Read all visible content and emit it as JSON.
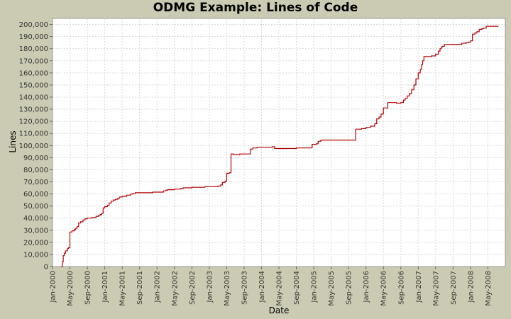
{
  "chart_data": {
    "type": "line",
    "title": "ODMG Example: Lines of Code",
    "xlabel": "Date",
    "ylabel": "Lines",
    "xlim": [
      "2000-01",
      "2008-09"
    ],
    "ylim": [
      0,
      205000
    ],
    "grid": true,
    "legend": "none",
    "colors": {
      "series": "#b40000",
      "plot_bg": "#ffffff",
      "page_bg": "#cbcbb4",
      "grid": "#d8d8d8"
    },
    "x_tick_labels": [
      "Jan-2000",
      "May-2000",
      "Sep-2000",
      "Jan-2001",
      "May-2001",
      "Sep-2001",
      "Jan-2002",
      "May-2002",
      "Sep-2002",
      "Jan-2003",
      "May-2003",
      "Sep-2003",
      "Jan-2004",
      "May-2004",
      "Sep-2004",
      "Jan-2005",
      "May-2005",
      "Sep-2005",
      "Jan-2006",
      "May-2006",
      "Sep-2006",
      "Jan-2007",
      "May-2007",
      "Sep-2007",
      "Jan-2008",
      "May-2008"
    ],
    "y_tick_labels": [
      "0",
      "10,000",
      "20,000",
      "30,000",
      "40,000",
      "50,000",
      "60,000",
      "70,000",
      "80,000",
      "90,000",
      "100,000",
      "110,000",
      "120,000",
      "130,000",
      "140,000",
      "150,000",
      "160,000",
      "170,000",
      "180,000",
      "190,000",
      "200,000"
    ],
    "series": [
      {
        "x": [
          "2000-03-01",
          "2000-03-08",
          "2000-03-15",
          "2000-03-22",
          "2000-04-01",
          "2000-04-15",
          "2000-04-22",
          "2000-05-01",
          "2000-05-15",
          "2000-06-01",
          "2000-06-10",
          "2000-06-20",
          "2000-07-01",
          "2000-07-15",
          "2000-08-01",
          "2000-08-15",
          "2000-09-01",
          "2000-10-01",
          "2000-11-01",
          "2000-11-20",
          "2000-12-01",
          "2000-12-10",
          "2000-12-20",
          "2001-01-01",
          "2001-01-20",
          "2001-02-01",
          "2001-02-15",
          "2001-03-01",
          "2001-03-15",
          "2001-04-01",
          "2001-04-15",
          "2001-05-01",
          "2001-06-01",
          "2001-07-01",
          "2001-07-15",
          "2001-08-01",
          "2001-10-01",
          "2001-12-01",
          "2002-01-01",
          "2002-02-15",
          "2002-03-01",
          "2002-03-15",
          "2002-05-01",
          "2002-06-15",
          "2002-07-01",
          "2002-09-01",
          "2002-11-01",
          "2002-12-01",
          "2003-01-01",
          "2003-03-01",
          "2003-03-20",
          "2003-04-01",
          "2003-04-20",
          "2003-05-01",
          "2003-05-20",
          "2003-06-01",
          "2003-06-20",
          "2003-07-01",
          "2003-08-01",
          "2003-09-01",
          "2003-10-15",
          "2003-11-01",
          "2003-11-15",
          "2003-12-01",
          "2004-03-15",
          "2004-04-01",
          "2004-08-01",
          "2004-09-01",
          "2004-10-15",
          "2004-11-01",
          "2004-12-01",
          "2004-12-20",
          "2005-01-20",
          "2005-02-01",
          "2005-02-20",
          "2005-03-01",
          "2005-06-01",
          "2005-09-01",
          "2005-10-01",
          "2005-10-20",
          "2005-12-01",
          "2006-01-01",
          "2006-02-01",
          "2006-03-01",
          "2006-03-15",
          "2006-04-01",
          "2006-04-15",
          "2006-05-01",
          "2006-06-01",
          "2006-07-01",
          "2006-08-01",
          "2006-09-01",
          "2006-09-20",
          "2006-10-01",
          "2006-10-15",
          "2006-11-01",
          "2006-11-15",
          "2006-12-01",
          "2006-12-15",
          "2007-01-01",
          "2007-01-15",
          "2007-01-25",
          "2007-02-01",
          "2007-02-10",
          "2007-02-20",
          "2007-03-01",
          "2007-04-01",
          "2007-05-01",
          "2007-05-20",
          "2007-06-01",
          "2007-06-10",
          "2007-06-20",
          "2007-07-01",
          "2007-07-15",
          "2007-08-01",
          "2007-09-01",
          "2007-10-01",
          "2007-11-01",
          "2007-12-01",
          "2007-12-20",
          "2008-01-01",
          "2008-01-15",
          "2008-02-01",
          "2008-02-15",
          "2008-03-01",
          "2008-03-20",
          "2008-04-01",
          "2008-04-20",
          "2008-05-01",
          "2008-05-15",
          "2008-07-15"
        ],
        "y": [
          0,
          4000,
          9000,
          11000,
          13000,
          15000,
          15500,
          28500,
          29500,
          30500,
          31500,
          33000,
          36000,
          37000,
          38500,
          39500,
          40000,
          40500,
          41500,
          42500,
          43000,
          44000,
          48500,
          49500,
          50500,
          52500,
          54000,
          55000,
          55500,
          56500,
          57500,
          58000,
          59000,
          60000,
          60500,
          61000,
          61000,
          61500,
          61500,
          62500,
          63000,
          63500,
          64000,
          64500,
          65000,
          65500,
          65500,
          66000,
          66000,
          66500,
          67500,
          69500,
          70500,
          77000,
          77500,
          93000,
          92500,
          92500,
          93000,
          93000,
          97000,
          98000,
          98000,
          98500,
          99000,
          97500,
          97500,
          98000,
          98000,
          98000,
          98000,
          101000,
          101500,
          103500,
          104500,
          104500,
          104500,
          104500,
          104500,
          113500,
          114000,
          115000,
          116000,
          118000,
          122000,
          123500,
          126000,
          131000,
          135500,
          135500,
          135000,
          135500,
          137500,
          139000,
          141000,
          143000,
          146000,
          150000,
          155000,
          160000,
          163000,
          167000,
          170000,
          173500,
          173500,
          173500,
          174000,
          175500,
          178000,
          180000,
          181500,
          182000,
          183500,
          183500,
          183500,
          183500,
          183500,
          184500,
          185000,
          185500,
          186500,
          192000,
          193000,
          194000,
          196000,
          196500,
          197000,
          198500,
          198500,
          198500,
          198500
        ]
      }
    ]
  }
}
